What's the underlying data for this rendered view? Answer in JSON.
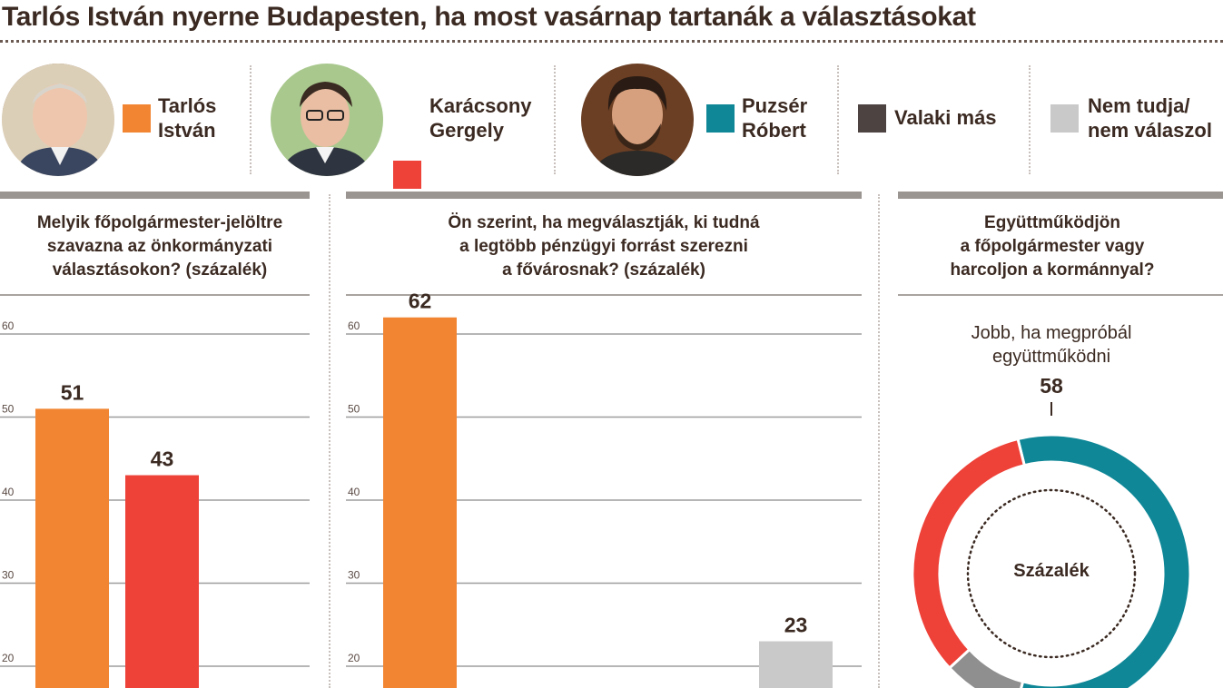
{
  "headline": "Tarlós István nyerne Budapesten, ha most vasárnap tartanák a választásokat",
  "legend": [
    {
      "id": "tarlos",
      "lines": [
        "Tarlós",
        "István"
      ],
      "color": "#f28532",
      "portrait": true
    },
    {
      "id": "karacsony",
      "lines": [
        "Karácsony",
        "Gergely"
      ],
      "color": "#ee4138",
      "portrait": true
    },
    {
      "id": "puzser",
      "lines": [
        "Puzsér",
        "Róbert"
      ],
      "color": "#0f8797",
      "portrait": true
    },
    {
      "id": "valaki",
      "lines": [
        "Valaki más"
      ],
      "color": "#4d4442",
      "portrait": false
    },
    {
      "id": "nemtudja",
      "lines": [
        "Nem tudja/",
        "nem válaszol"
      ],
      "color": "#c9c9c9",
      "portrait": false
    }
  ],
  "chart_data": [
    {
      "type": "bar",
      "title_lines": [
        "Melyik főpolgármester-jelöltre",
        "szavazna az önkormányzati",
        "választásokon? (százalék)"
      ],
      "y_ticks": [
        "20",
        "30",
        "40",
        "50",
        "60"
      ],
      "ylim": [
        0,
        60
      ],
      "grid": true,
      "bars": [
        {
          "series": "Tarlós István",
          "value": 51,
          "label": "51",
          "color": "#f28532"
        },
        {
          "series": "Karácsony Gergely",
          "value": 43,
          "label": "43",
          "color": "#ee4138"
        }
      ]
    },
    {
      "type": "bar",
      "title_lines": [
        "Ön szerint, ha megválasztják, ki tudná",
        "a legtöbb pénzügyi forrást szerezni",
        "a fővárosnak? (százalék)"
      ],
      "y_ticks": [
        "20",
        "30",
        "40",
        "50",
        "60"
      ],
      "ylim": [
        0,
        60
      ],
      "grid": true,
      "bars": [
        {
          "series": "Tarlós István",
          "value": 62,
          "label": "62",
          "color": "#f28532"
        },
        {
          "series": "Nem tudja/nem válaszol",
          "value": 23,
          "label": "23",
          "color": "#c9c9c9"
        }
      ]
    },
    {
      "type": "pie",
      "title_lines": [
        "Együttműködjön",
        "a főpolgármester vagy",
        "harcoljon a kormánnyal?"
      ],
      "center_label": "Százalék",
      "callout_lines": [
        "Jobb, ha megpróbál",
        "együttműködni"
      ],
      "callout_value": "58",
      "slices": [
        {
          "name": "Jobb, ha megpróbál együttműködni",
          "value": 58,
          "color": "#0f8797"
        },
        {
          "name": "Nem tudja/nem válaszol",
          "value": 9,
          "color": "#8f8f8f"
        },
        {
          "name": "",
          "value": 33,
          "color": "#ee4138"
        }
      ]
    }
  ]
}
